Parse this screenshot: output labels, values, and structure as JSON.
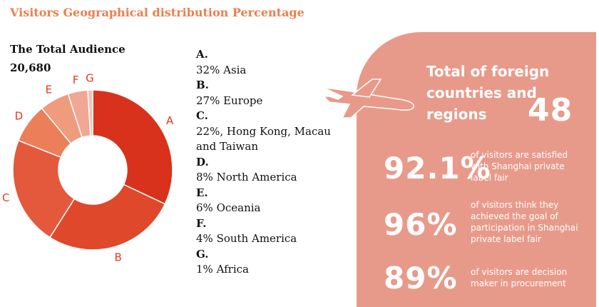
{
  "title": "Visitors Geographical distribution Percentage",
  "audience": {
    "label": "The Total Audience",
    "value": "20,680"
  },
  "chart_data": {
    "type": "pie",
    "style": "donut",
    "title": "Visitors Geographical distribution Percentage",
    "categories": [
      "A",
      "B",
      "C",
      "D",
      "E",
      "F",
      "G"
    ],
    "values": [
      32,
      27,
      22,
      8,
      6,
      4,
      1
    ],
    "colors": [
      "#d8321c",
      "#e0482b",
      "#e4583c",
      "#ec7f5a",
      "#ef9b7e",
      "#f0a793",
      "#f4c1b4"
    ],
    "legend": [
      {
        "key": "A.",
        "text": "32% Asia"
      },
      {
        "key": "B.",
        "text": "27% Europe"
      },
      {
        "key": "C.",
        "text": "22%, Hong Kong, Macau and Taiwan"
      },
      {
        "key": "D.",
        "text": "8% North America"
      },
      {
        "key": "E.",
        "text": "6% Oceania"
      },
      {
        "key": "F.",
        "text": "4% South America"
      },
      {
        "key": "G.",
        "text": "1% Africa"
      }
    ]
  },
  "panel": {
    "foreign_label": "Total of foreign countries and regions",
    "foreign_value": "48",
    "stats": [
      {
        "value": "92.1%",
        "text": "of visitors are satisfied with Shanghai private label fair"
      },
      {
        "value": "96%",
        "text": "of visitors think they achieved the goal of participation in Shanghai private label fair"
      },
      {
        "value": "89%",
        "text": "of visitors are decision maker in procurement"
      }
    ]
  },
  "colors": {
    "accent": "#ec7f4e",
    "panel": "#e89a8a",
    "label_red": "#e23a1f"
  },
  "icons": {
    "plane": "airplane-icon"
  }
}
